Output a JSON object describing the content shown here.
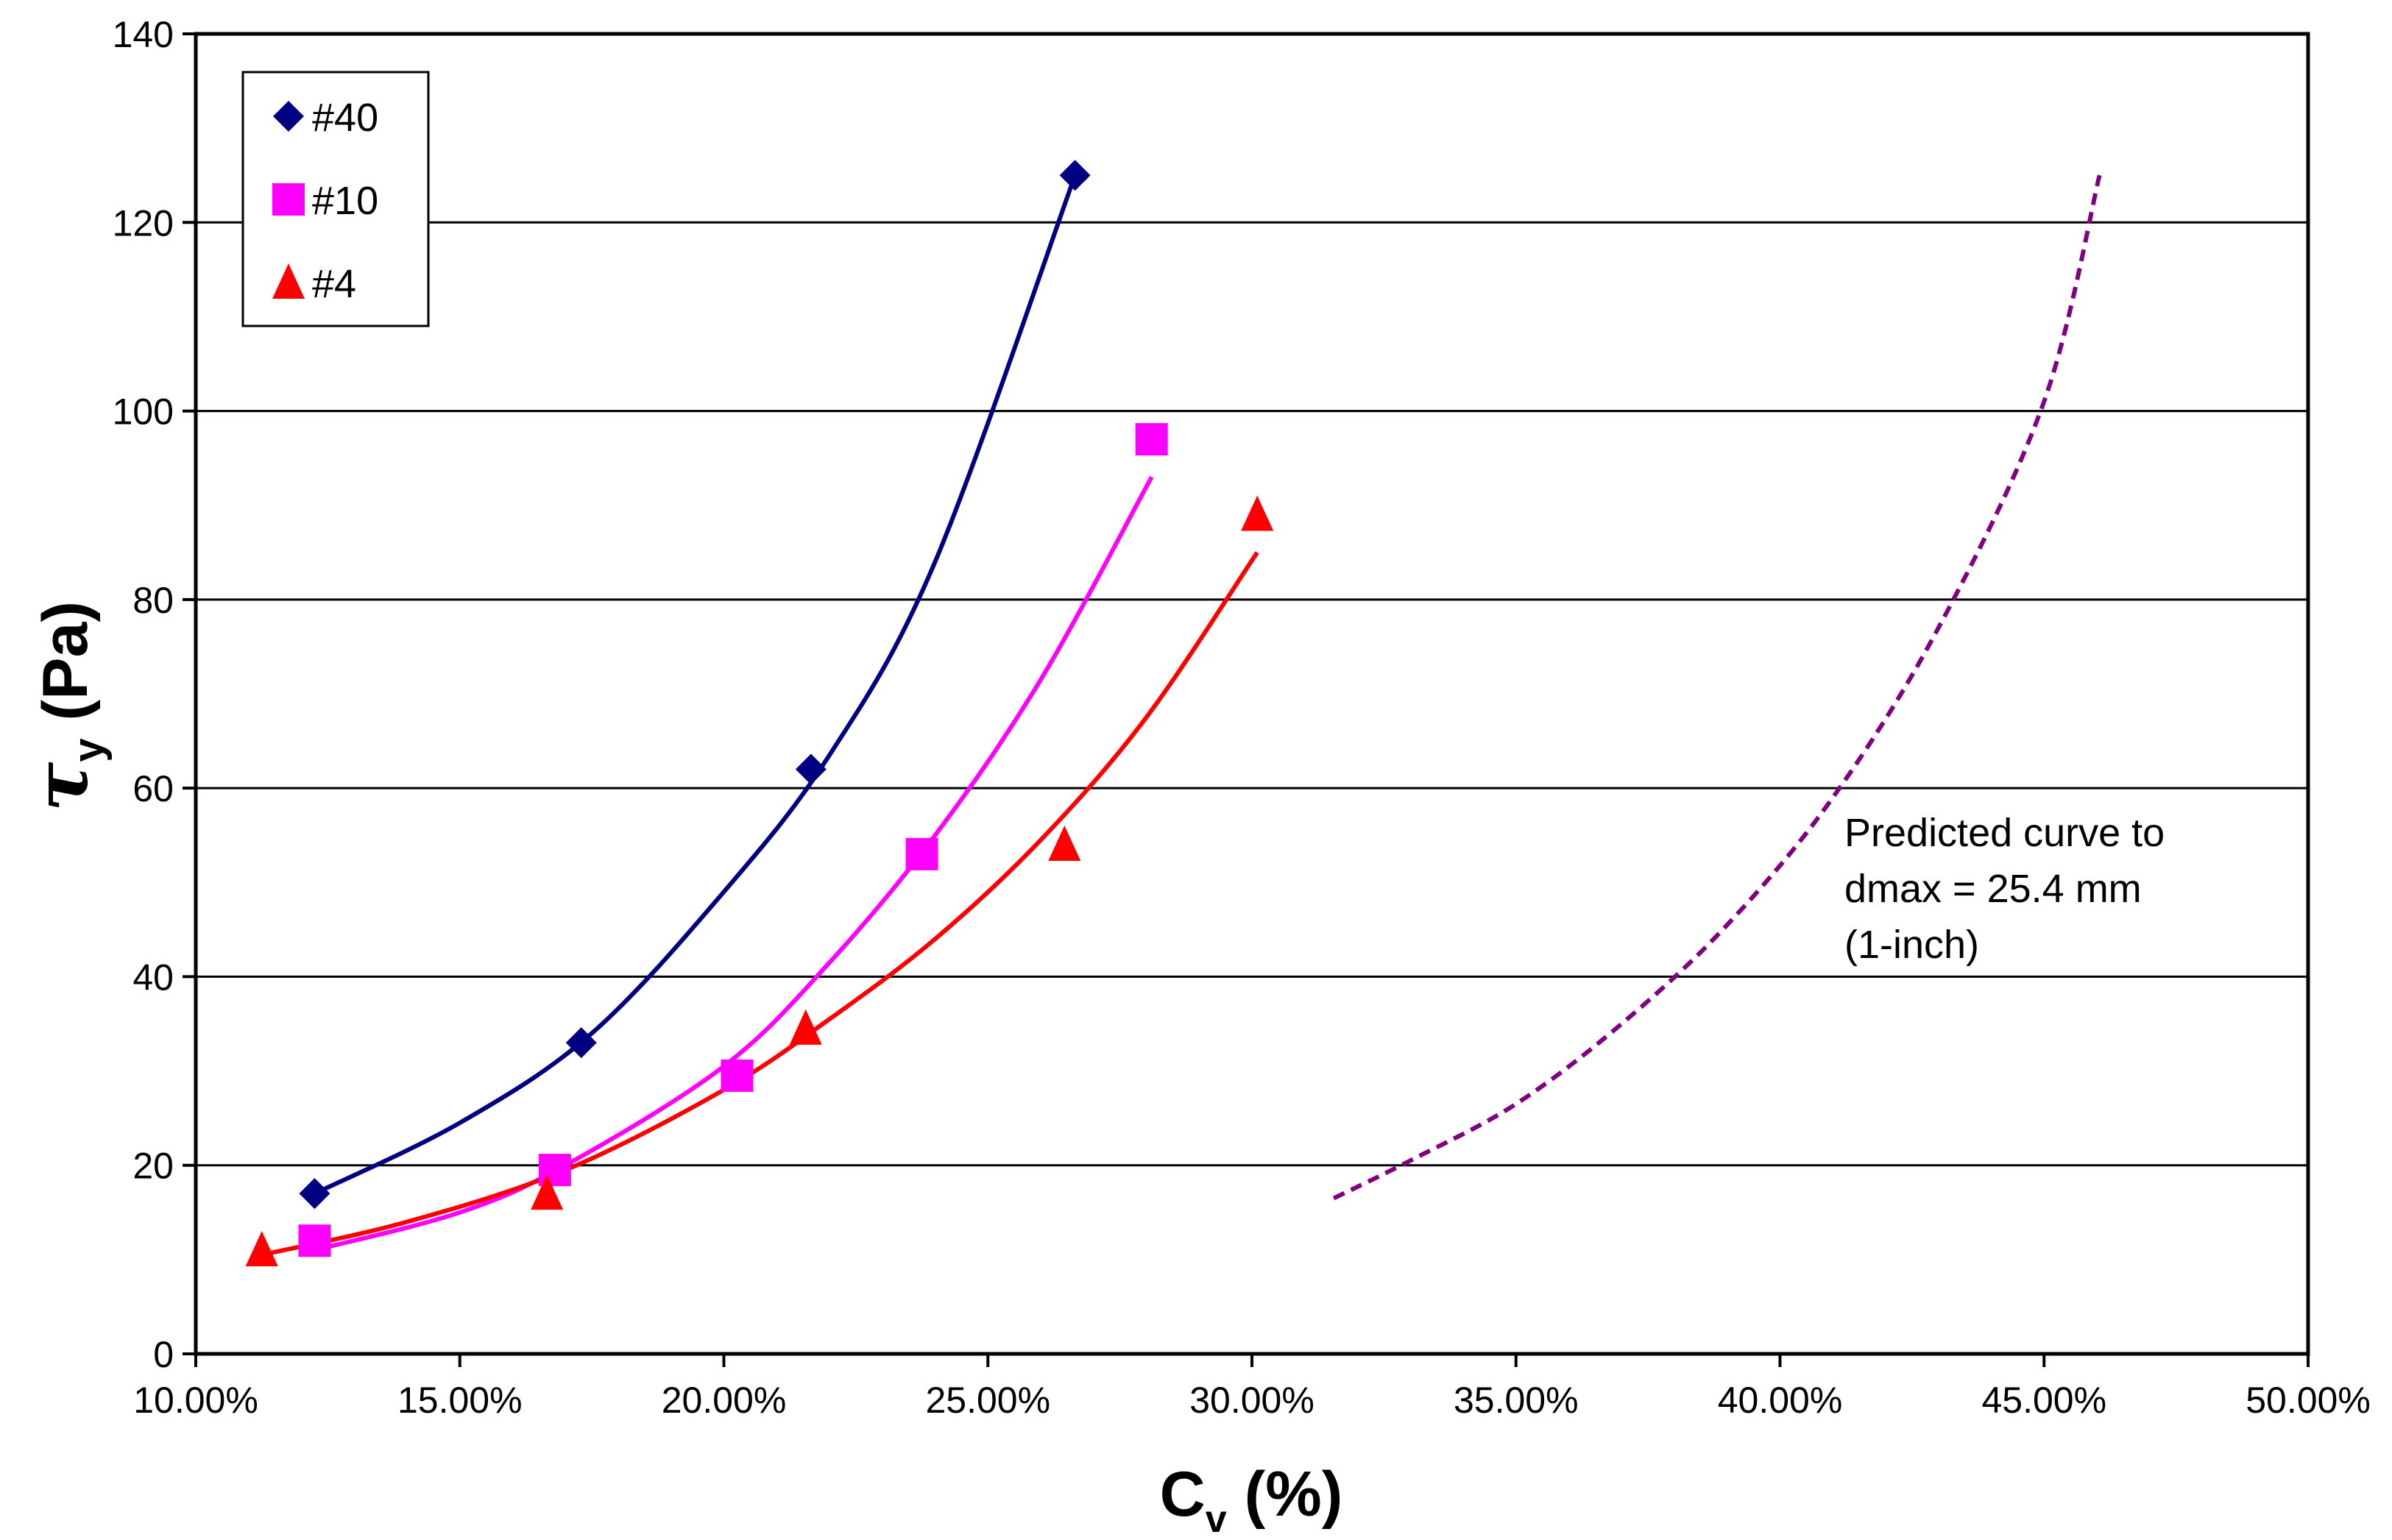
{
  "chart_data": {
    "type": "scatter",
    "title": "",
    "xlabel_main": "C",
    "xlabel_sub": "v",
    "xlabel_unit": " (%)",
    "ylabel_main": "τ",
    "ylabel_sub": "y",
    "ylabel_unit": " (Pa)",
    "xlim": [
      0.1,
      0.5
    ],
    "ylim": [
      0,
      140
    ],
    "x_ticks": [
      0.1,
      0.15,
      0.2,
      0.25,
      0.3,
      0.35,
      0.4,
      0.45,
      0.5
    ],
    "x_tick_labels": [
      "10.00%",
      "15.00%",
      "20.00%",
      "25.00%",
      "30.00%",
      "35.00%",
      "40.00%",
      "45.00%",
      "50.00%"
    ],
    "y_ticks": [
      0,
      20,
      40,
      60,
      80,
      100,
      120,
      140
    ],
    "y_tick_labels": [
      "0",
      "20",
      "40",
      "60",
      "80",
      "100",
      "120",
      "140"
    ],
    "grid": "horizontal",
    "legend_position": "top-left",
    "series": [
      {
        "name": "#40",
        "marker": "diamond",
        "color": "#000080",
        "x": [
          0.1225,
          0.173,
          0.2165,
          0.2665
        ],
        "y": [
          17,
          33,
          62,
          125
        ],
        "fit_x": [
          0.1225,
          0.15,
          0.175,
          0.2,
          0.22,
          0.24,
          0.2665
        ],
        "fit_y": [
          17,
          24.5,
          34,
          49,
          63.5,
          84,
          125
        ]
      },
      {
        "name": "#10",
        "marker": "square",
        "color": "#FF00FF",
        "x": [
          0.1225,
          0.168,
          0.2025,
          0.2375,
          0.281
        ],
        "y": [
          12,
          19.5,
          29.5,
          53,
          97
        ],
        "fit_x": [
          0.1225,
          0.15,
          0.17,
          0.2,
          0.22,
          0.24,
          0.26,
          0.281
        ],
        "fit_y": [
          11,
          15,
          20,
          30.5,
          41.5,
          55,
          71.5,
          93
        ]
      },
      {
        "name": "#4",
        "marker": "triangle",
        "color": "#FF0000",
        "x": [
          0.1125,
          0.1665,
          0.2155,
          0.2645,
          0.301
        ],
        "y": [
          11,
          17,
          34.5,
          54,
          89
        ],
        "fit_x": [
          0.1125,
          0.14,
          0.17,
          0.2,
          0.22,
          0.24,
          0.26,
          0.28,
          0.301
        ],
        "fit_y": [
          10.5,
          14,
          19.5,
          28,
          35.5,
          44,
          54.5,
          67.5,
          85
        ]
      },
      {
        "name": "Predicted curve",
        "line_style": "dashed",
        "color": "#800080",
        "fit_x": [
          0.3155,
          0.33,
          0.35,
          0.37,
          0.39,
          0.41,
          0.43,
          0.45,
          0.4605
        ],
        "fit_y": [
          16.5,
          20.5,
          26.5,
          35,
          45.5,
          59,
          77,
          101,
          125
        ]
      }
    ],
    "annotation": {
      "lines": [
        "Predicted curve to",
        "dmax = 25.4 mm",
        "(1-inch)"
      ]
    }
  }
}
